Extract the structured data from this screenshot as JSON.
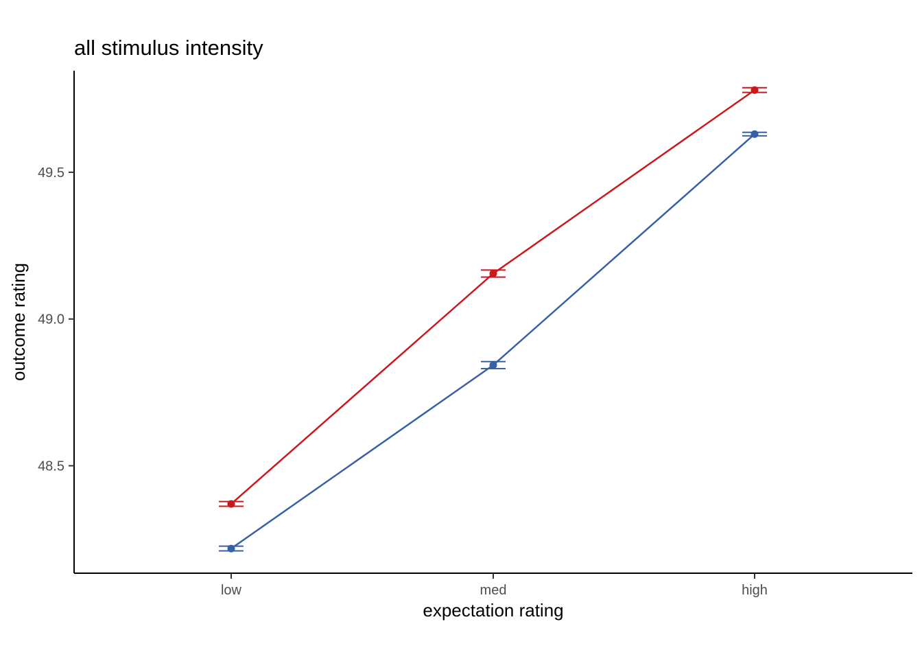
{
  "chart_data": {
    "type": "line",
    "title": "all stimulus intensity",
    "xlabel": "expectation rating",
    "ylabel": "outcome rating",
    "categories": [
      "low",
      "med",
      "high"
    ],
    "yticks": [
      48.5,
      49.0,
      49.5
    ],
    "ytick_labels": [
      "48.5",
      "49.0",
      "49.5"
    ],
    "ylim": [
      48.134,
      49.846
    ],
    "grid": false,
    "legend": "none",
    "series": [
      {
        "color": "#CB181D",
        "values": [
          48.37,
          49.155,
          49.78
        ],
        "error": [
          0.008,
          0.012,
          0.008
        ]
      },
      {
        "color": "#3761A5",
        "values": [
          48.218,
          48.843,
          49.63
        ],
        "error": [
          0.008,
          0.012,
          0.006
        ]
      }
    ]
  }
}
